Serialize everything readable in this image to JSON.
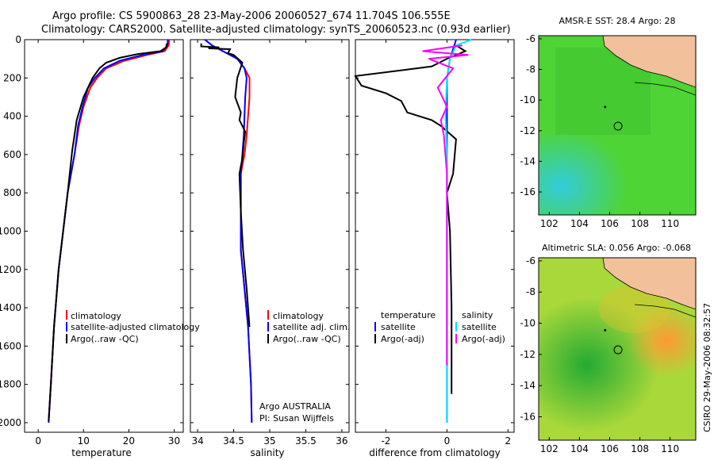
{
  "header": {
    "line1": "Argo profile: CS 5900863_28 23-May-2006 20060527_674 11.704S 106.555E",
    "line2": "Climatology: CARS2000. Satellite-adjusted climatology: synTS_20060523.nc (0.93d earlier)"
  },
  "side_text": "CSIRO 29-May-2006 08:32:57",
  "colors": {
    "climatology": "#ff0000",
    "satellite": "#0000ff",
    "argo": "#000000",
    "sal_satellite": "#00e5ff",
    "sal_argo": "#ff00ff",
    "land": "#f2c09a"
  },
  "chart_data": [
    {
      "type": "line",
      "xlabel": "temperature",
      "ylabel": "",
      "xlim": [
        -3,
        32
      ],
      "ylim": [
        2050,
        0
      ],
      "yticks": [
        0,
        200,
        400,
        600,
        800,
        1000,
        1200,
        1400,
        1600,
        1800,
        2000
      ],
      "ytick_labels": [
        "0",
        "200",
        "400",
        "600",
        "800",
        "1000",
        "1200",
        "1400",
        "1600",
        "1800",
        "2000"
      ],
      "xticks": [
        0,
        10,
        20,
        30
      ],
      "xtick_labels": [
        "0",
        "10",
        "20",
        "30"
      ],
      "legend": [
        "climatology",
        "satellite-adjusted climatology",
        "Argo(..raw -QC)"
      ],
      "series": [
        {
          "name": "climatology",
          "color": "#ff0000",
          "x": [
            28.9,
            28.8,
            27.9,
            24,
            19,
            15,
            13,
            11.5,
            10,
            9,
            8,
            6.5,
            5.5,
            4.5,
            3.5,
            2.8,
            2.3
          ],
          "y": [
            0,
            30,
            60,
            80,
            110,
            150,
            200,
            250,
            350,
            450,
            600,
            800,
            1000,
            1200,
            1500,
            1800,
            2000
          ]
        },
        {
          "name": "satellite-adjusted climatology",
          "color": "#0000ff",
          "x": [
            28.6,
            28.5,
            27.5,
            23,
            18,
            14.5,
            12.5,
            11,
            9.8,
            8.8,
            8,
            6.5,
            5.5,
            4.5,
            3.5,
            2.8,
            2.3
          ],
          "y": [
            0,
            30,
            60,
            80,
            110,
            150,
            200,
            250,
            350,
            450,
            600,
            800,
            1000,
            1200,
            1500,
            1800,
            2000
          ]
        },
        {
          "name": "Argo(..raw -QC)",
          "color": "#000000",
          "x": [
            28.4,
            28.2,
            27,
            22,
            18,
            15,
            13.5,
            12,
            10,
            8.5,
            7.5,
            6.5,
            5.5,
            4.5,
            3.5,
            2.8,
            2.3
          ],
          "y": [
            20,
            40,
            60,
            75,
            95,
            120,
            150,
            200,
            300,
            420,
            580,
            800,
            1000,
            1200,
            1500,
            1800,
            1990
          ]
        }
      ]
    },
    {
      "type": "line",
      "xlabel": "salinity",
      "ylabel": "",
      "xlim": [
        33.9,
        36.1
      ],
      "ylim": [
        2050,
        0
      ],
      "xticks": [
        34,
        34.5,
        35,
        35.5,
        36
      ],
      "xtick_labels": [
        "34",
        "34.5",
        "35",
        "35.5",
        "36"
      ],
      "legend": [
        "climatology",
        "satellite adj. clim.",
        "Argo(..raw -QC)"
      ],
      "annotation": [
        "Argo AUSTRALIA",
        "PI: Susan Wijffels"
      ],
      "series": [
        {
          "name": "climatology",
          "color": "#ff0000",
          "x": [
            34.1,
            34.2,
            34.35,
            34.55,
            34.65,
            34.72,
            34.72,
            34.7,
            34.68,
            34.65,
            34.6,
            34.6,
            34.6,
            34.65,
            34.7,
            34.74,
            34.75
          ],
          "y": [
            0,
            30,
            60,
            100,
            150,
            200,
            300,
            400,
            500,
            600,
            700,
            900,
            1100,
            1300,
            1500,
            1800,
            2000
          ]
        },
        {
          "name": "satellite adj. clim.",
          "color": "#0000ff",
          "x": [
            34.1,
            34.2,
            34.35,
            34.55,
            34.65,
            34.68,
            34.66,
            34.65,
            34.64,
            34.62,
            34.6,
            34.6,
            34.6,
            34.65,
            34.7,
            34.74,
            34.75
          ],
          "y": [
            0,
            30,
            60,
            100,
            150,
            200,
            300,
            400,
            500,
            600,
            700,
            900,
            1100,
            1300,
            1500,
            1800,
            2000
          ]
        },
        {
          "name": "Argo(..raw -QC)",
          "color": "#000000",
          "x": [
            34.05,
            34.05,
            34.3,
            34.15,
            34.45,
            34.42,
            34.5,
            34.62,
            34.55,
            34.52,
            34.6,
            34.58,
            34.66,
            34.64,
            34.62,
            34.58,
            34.6,
            34.63,
            34.68,
            34.72
          ],
          "y": [
            20,
            35,
            40,
            45,
            50,
            70,
            80,
            120,
            200,
            300,
            380,
            420,
            480,
            540,
            620,
            700,
            900,
            1100,
            1300,
            1500
          ]
        }
      ]
    },
    {
      "type": "line",
      "xlabel": "difference from climatology",
      "ylabel": "",
      "xlim": [
        -3,
        2.2
      ],
      "ylim": [
        2050,
        0
      ],
      "xticks": [
        -2,
        0,
        2
      ],
      "xtick_labels": [
        "-2",
        "0",
        "2"
      ],
      "legend": [
        "temperature",
        "satellite",
        "Argo(-adj)",
        "salinity",
        "satellite",
        "Argo(-adj)"
      ],
      "series": [
        {
          "name": "satellite",
          "color": "#0000ff",
          "x": [
            0.3,
            0.2,
            0.1,
            0.0,
            0.0,
            0.0,
            0.0,
            0.0,
            0.0,
            0.0
          ],
          "y": [
            0,
            50,
            100,
            200,
            400,
            600,
            800,
            1000,
            1500,
            2000
          ]
        },
        {
          "name": "Argo(-adj)",
          "color": "#000000",
          "x": [
            0.3,
            0.6,
            0.0,
            -0.5,
            -3.0,
            -2.8,
            -2.0,
            -1.5,
            -1.3,
            -0.5,
            -0.2,
            0.3,
            0.2,
            0.0,
            0.1,
            0.15,
            0.15,
            0.15
          ],
          "y": [
            30,
            60,
            100,
            140,
            190,
            240,
            280,
            320,
            380,
            420,
            450,
            520,
            700,
            800,
            1000,
            1400,
            1700,
            1850
          ]
        },
        {
          "name": "satellite",
          "color": "#00e5ff",
          "x": [
            0.8,
            0.3,
            0.1,
            0.0,
            -0.05,
            0.0,
            0.0,
            0.0,
            0.0
          ],
          "y": [
            0,
            30,
            100,
            200,
            400,
            600,
            1000,
            1500,
            2000
          ]
        },
        {
          "name": "Argo(-adj)",
          "color": "#ff00ff",
          "x": [
            0.5,
            -0.8,
            0.7,
            -0.6,
            0.2,
            -0.3,
            0.0,
            -0.2,
            -0.1,
            0.0,
            0.0
          ],
          "y": [
            30,
            60,
            80,
            100,
            150,
            250,
            350,
            420,
            500,
            700,
            1700
          ]
        }
      ]
    },
    {
      "type": "heatmap",
      "title": "AMSR-E SST: 28.4 Argo: 28",
      "xlim": [
        101.3,
        111.7
      ],
      "ylim": [
        -17.5,
        -5.8
      ],
      "xticks": [
        102,
        104,
        106,
        108,
        110
      ],
      "xtick_labels": [
        "102",
        "104",
        "106",
        "108",
        "110"
      ],
      "yticks": [
        -6,
        -8,
        -10,
        -12,
        -14,
        -16
      ],
      "ytick_labels": [
        "-6",
        "-8",
        "-10",
        "-12",
        "-14",
        "-16"
      ],
      "argo_position": {
        "lon": 106.555,
        "lat": -11.704
      }
    },
    {
      "type": "heatmap",
      "title": "Altimetric SLA: 0.056 Argo: -0.068",
      "xlim": [
        101.3,
        111.7
      ],
      "ylim": [
        -17.5,
        -5.8
      ],
      "xticks": [
        102,
        104,
        106,
        108,
        110
      ],
      "xtick_labels": [
        "102",
        "104",
        "106",
        "108",
        "110"
      ],
      "yticks": [
        -6,
        -8,
        -10,
        -12,
        -14,
        -16
      ],
      "ytick_labels": [
        "-6",
        "-8",
        "-10",
        "-12",
        "-14",
        "-16"
      ],
      "argo_position": {
        "lon": 106.555,
        "lat": -11.704
      }
    }
  ]
}
